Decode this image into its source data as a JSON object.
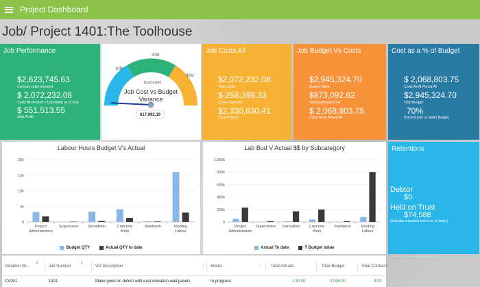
{
  "app": {
    "title": "Project Dashboard"
  },
  "page": {
    "title": "Job/ Project 1401:The Toolhouse"
  },
  "job_performance": {
    "title": "Job Performance",
    "stats": [
      {
        "value": "$2,623,745.63",
        "label": "Contract value invoiced"
      },
      {
        "value": "$ 2,072,232.08",
        "label": "Costs All (Posted + Unposted) as of now"
      },
      {
        "value": "$ 551,513.55",
        "label": "Jobs Profit"
      }
    ]
  },
  "gauge": {
    "title": "Job Cost vs Budget Variance",
    "series_label": "BudCostAll",
    "readout": "617,992.19",
    "ticks": [
      "0",
      "10M",
      "20M",
      "30M"
    ],
    "value": 617992.19,
    "min": 0,
    "max": 30000000,
    "colors": [
      "#29b6e9",
      "#2db37a",
      "#f8b233"
    ]
  },
  "job_costs_all": {
    "title": "Job Costs All",
    "stats": [
      {
        "value": "$2,072,232.08",
        "label": "Total Costs"
      },
      {
        "value": "$-258,398.33",
        "label": "Costs Unposted"
      },
      {
        "value": "$2,330,630.41",
        "label": "Costs Posted"
      }
    ]
  },
  "job_budget_vs_costs": {
    "title": "Job Budget Vs Costs",
    "stats": [
      {
        "value": "$2,945,324.70",
        "label": "Budget Value"
      },
      {
        "value": "$873,092.62",
        "label": "VarianceBudgetCost"
      },
      {
        "value": "$ 2,068,803.75",
        "label": "Costs As At Period All"
      }
    ]
  },
  "cost_pct": {
    "title": "Cost as a % of Budget",
    "stats": [
      {
        "value": "$ 2,068,803.75",
        "label": "Costs As At Period All"
      },
      {
        "value": "$2,945,324.70",
        "label": "Total Budget"
      },
      {
        "value": "70%",
        "label": "Percent over or under Budget"
      }
    ]
  },
  "retentions": {
    "title": "Retentions",
    "debtor_label": "Debtor",
    "debtor_value": "$0",
    "held_label": "Held on Trust",
    "held_value": "$74,588",
    "held_note": "(includes unposted and is as at today)"
  },
  "chart_data": [
    {
      "type": "bar",
      "title": "Labour Hours Budget V's Actual",
      "categories": [
        "Project Administration",
        "Supervision",
        "Demolition",
        "Concrete Work",
        "Steelwork",
        "Roofing Labour"
      ],
      "category_labels": [
        [
          "Project",
          "Administration"
        ],
        [
          "Supervision"
        ],
        [
          "Demolition"
        ],
        [
          "Concrete",
          "Work"
        ],
        [
          "Steelwork"
        ],
        [
          "Roofing",
          "Labour"
        ]
      ],
      "series": [
        {
          "name": "Budget QTY",
          "values": [
            3200,
            100,
            3300,
            4100,
            200,
            16000
          ],
          "color": "#8bb7e6"
        },
        {
          "name": "Actual QTY to date",
          "values": [
            1800,
            100,
            300,
            1300,
            150,
            3000
          ],
          "color": "#3a3a3a"
        }
      ],
      "ylim": [
        0,
        20000
      ],
      "yticks": [
        "0",
        "5k",
        "10k",
        "15k",
        "20k"
      ],
      "ytick_values": [
        0,
        5000,
        10000,
        15000,
        20000
      ],
      "legend": "bottom",
      "grid": true
    },
    {
      "type": "bar",
      "title": "Lab Bud V Actual $$ by Subcategory",
      "categories": [
        "Project Administration",
        "Supervision",
        "Demolition",
        "Concrete Work",
        "Steelwork",
        "Roofing Labour"
      ],
      "category_labels": [
        [
          "Project",
          "Administration"
        ],
        [
          "Supervision"
        ],
        [
          "Demolition"
        ],
        [
          "Concrete",
          "Work"
        ],
        [
          "Steelwork"
        ],
        [
          "Roofing",
          "Labour"
        ]
      ],
      "series": [
        {
          "name": "Actual To date",
          "values": [
            50000,
            5000,
            10000,
            40000,
            5000,
            80000
          ],
          "color": "#8bb7e6"
        },
        {
          "name": "T Budget Value",
          "values": [
            230000,
            10000,
            170000,
            200000,
            10000,
            800000
          ],
          "color": "#3a3a3a"
        }
      ],
      "ylim": [
        0,
        1000000
      ],
      "yticks": [
        "0",
        "200k",
        "400k",
        "600k",
        "800k",
        "1,000k"
      ],
      "ytick_values": [
        0,
        200000,
        400000,
        600000,
        800000,
        1000000
      ],
      "legend": "bottom",
      "grid": true
    }
  ],
  "table": {
    "columns": [
      {
        "label": "Variation Or...",
        "sort": "2"
      },
      {
        "label": "Job Number",
        "sort": "1"
      },
      {
        "label": "VO Description",
        "sort": ""
      },
      {
        "label": "Status",
        "sort": ""
      },
      {
        "label": "Total Actuals",
        "sort": ""
      },
      {
        "label": "Total Budget",
        "sort": ""
      },
      {
        "label": "Total Contract",
        "sort": ""
      }
    ],
    "rows": [
      [
        "CV001",
        "1401",
        "Make good on defect with east elevation wall panels",
        "In progress",
        "130.00",
        "3,000.00",
        "0.00"
      ]
    ]
  }
}
